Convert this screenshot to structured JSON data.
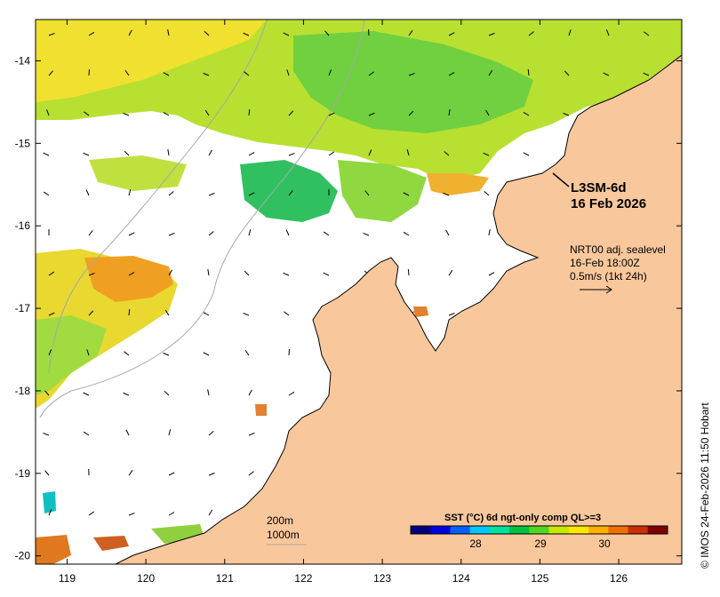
{
  "map": {
    "lon_range": [
      118.6,
      126.8
    ],
    "lat_range": [
      -20.1,
      -13.5
    ],
    "lon_ticks": [
      "119",
      "120",
      "121",
      "122",
      "123",
      "124",
      "125",
      "126"
    ],
    "lat_ticks": [
      "-14",
      "-15",
      "-16",
      "-17",
      "-18",
      "-19",
      "-20"
    ],
    "colors": {
      "land": "#f9c79c",
      "ocean_nodata": "#ffffff",
      "coast": "#000000",
      "bathymetry_contour": "#a8a8a8",
      "current_arrows": "#000000"
    }
  },
  "product": {
    "name": "L3SM-6d",
    "date": "16 Feb 2026"
  },
  "currents_note": {
    "line1": "NRT00 adj. sealevel",
    "line2": "16-Feb 18:00Z",
    "line3": "0.5m/s (1kt 24h)"
  },
  "contour_legend": {
    "depth1": "200m",
    "depth2": "1000m"
  },
  "colorbar": {
    "title": "SST (°C) 6d ngt-only comp QL>=3",
    "ticks": [
      "28",
      "29",
      "30"
    ],
    "colors": [
      "#00007f",
      "#0000e0",
      "#0060ff",
      "#00c8ff",
      "#00e0a0",
      "#00c040",
      "#50d820",
      "#c8e800",
      "#ffe800",
      "#ffb000",
      "#f07000",
      "#c83000",
      "#800000"
    ]
  },
  "copyright": "© IMOS 24-Feb-2026 11:50 Hobart"
}
